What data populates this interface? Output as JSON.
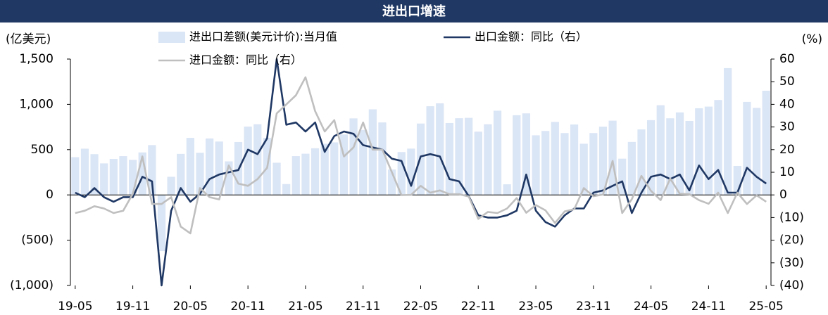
{
  "chart_data": {
    "type": "bar_line",
    "title": "进出口增速",
    "y_label": "(亿美元)",
    "y2_label": "(%)",
    "categories": [
      "19-05",
      null,
      null,
      null,
      null,
      null,
      "19-11",
      null,
      null,
      null,
      null,
      null,
      "20-05",
      null,
      null,
      null,
      null,
      null,
      "20-11",
      null,
      null,
      null,
      null,
      null,
      "21-05",
      null,
      null,
      null,
      null,
      null,
      "21-11",
      null,
      null,
      null,
      null,
      null,
      "22-05",
      null,
      null,
      null,
      null,
      null,
      "22-11",
      null,
      null,
      null,
      null,
      null,
      "23-05",
      null,
      null,
      null,
      null,
      null,
      "23-11",
      null,
      null,
      null,
      null,
      null,
      "24-05",
      null,
      null,
      null,
      null,
      null,
      "24-11",
      null,
      null,
      null,
      null,
      null,
      "25-05"
    ],
    "series": [
      {
        "name": "进出口差额(美元计价):当月值",
        "type": "bar",
        "color": "#dae5f5",
        "values": [
          417,
          510,
          450,
          348,
          397,
          428,
          387,
          469,
          550,
          -620,
          200,
          453,
          630,
          465,
          623,
          589,
          370,
          584,
          754,
          780,
          630,
          355,
          120,
          428,
          455,
          515,
          565,
          580,
          667,
          845,
          717,
          945,
          800,
          280,
          473,
          511,
          788,
          979,
          1011,
          794,
          847,
          851,
          698,
          780,
          930,
          117,
          880,
          900,
          658,
          706,
          806,
          683,
          777,
          565,
          683,
          753,
          820,
          400,
          585,
          723,
          826,
          990,
          846,
          911,
          817,
          957,
          975,
          1048,
          1400,
          320,
          1027,
          961,
          1150
        ]
      },
      {
        "name": "出口金额：同比（右）",
        "type": "line",
        "axis": "y2",
        "color": "#1f3864",
        "values": [
          1,
          -1,
          3,
          -1,
          -3,
          -1,
          -1,
          8,
          6,
          -40,
          -7,
          3,
          -3,
          0.5,
          7,
          9,
          10,
          11,
          20,
          18,
          25,
          60,
          31,
          32,
          28,
          32,
          19,
          26,
          28,
          27,
          22,
          21,
          20,
          16,
          15,
          4,
          17,
          18,
          17,
          7,
          6,
          -0.5,
          -9,
          -10,
          -10,
          -9,
          -7,
          9,
          -7,
          -12,
          -14,
          -9,
          -6,
          -6,
          1,
          2,
          4,
          6,
          -8,
          1,
          8,
          9,
          7,
          9,
          2,
          13,
          7,
          11,
          1,
          1,
          12,
          8,
          5
        ]
      },
      {
        "name": "进口金额：同比（右）",
        "type": "line",
        "axis": "y2",
        "color": "#bfbfbf",
        "values": [
          -8,
          -7,
          -5,
          -6,
          -8,
          -7,
          0.5,
          17,
          -4,
          -4,
          -1,
          -14,
          -17,
          3,
          -1,
          -2,
          13,
          5,
          4,
          7,
          12,
          36,
          40,
          44,
          52,
          37,
          28,
          33,
          17,
          21,
          32,
          20,
          20,
          10,
          -0.1,
          0,
          4,
          1,
          2,
          0.3,
          0.3,
          -0.7,
          -10.6,
          -7.5,
          -8,
          -6,
          -1.4,
          -7.9,
          -4.5,
          -6.8,
          -12.4,
          -7.3,
          -6.3,
          3,
          -0.6,
          0.2,
          15,
          -8,
          -1.9,
          8.4,
          1.8,
          -2.3,
          7.2,
          0.5,
          0.3,
          -2.3,
          -3.9,
          1,
          -8,
          1,
          -4,
          -0.2,
          -3
        ]
      }
    ],
    "ylim": [
      -1000,
      1500
    ],
    "yticks": [
      {
        "value": -1000,
        "label": "(1,000)"
      },
      {
        "value": -500,
        "label": "(500)"
      },
      0,
      500,
      {
        "value": 1000,
        "label": "1,000"
      },
      {
        "value": 1500,
        "label": "1,500"
      }
    ],
    "y2lim": [
      -40,
      60
    ],
    "y2ticks": [
      {
        "value": -40,
        "label": "(40)"
      },
      {
        "value": -30,
        "label": "(30)"
      },
      {
        "value": -20,
        "label": "(20)"
      },
      {
        "value": -10,
        "label": "(10)"
      },
      0,
      10,
      20,
      30,
      40,
      50,
      60
    ]
  }
}
